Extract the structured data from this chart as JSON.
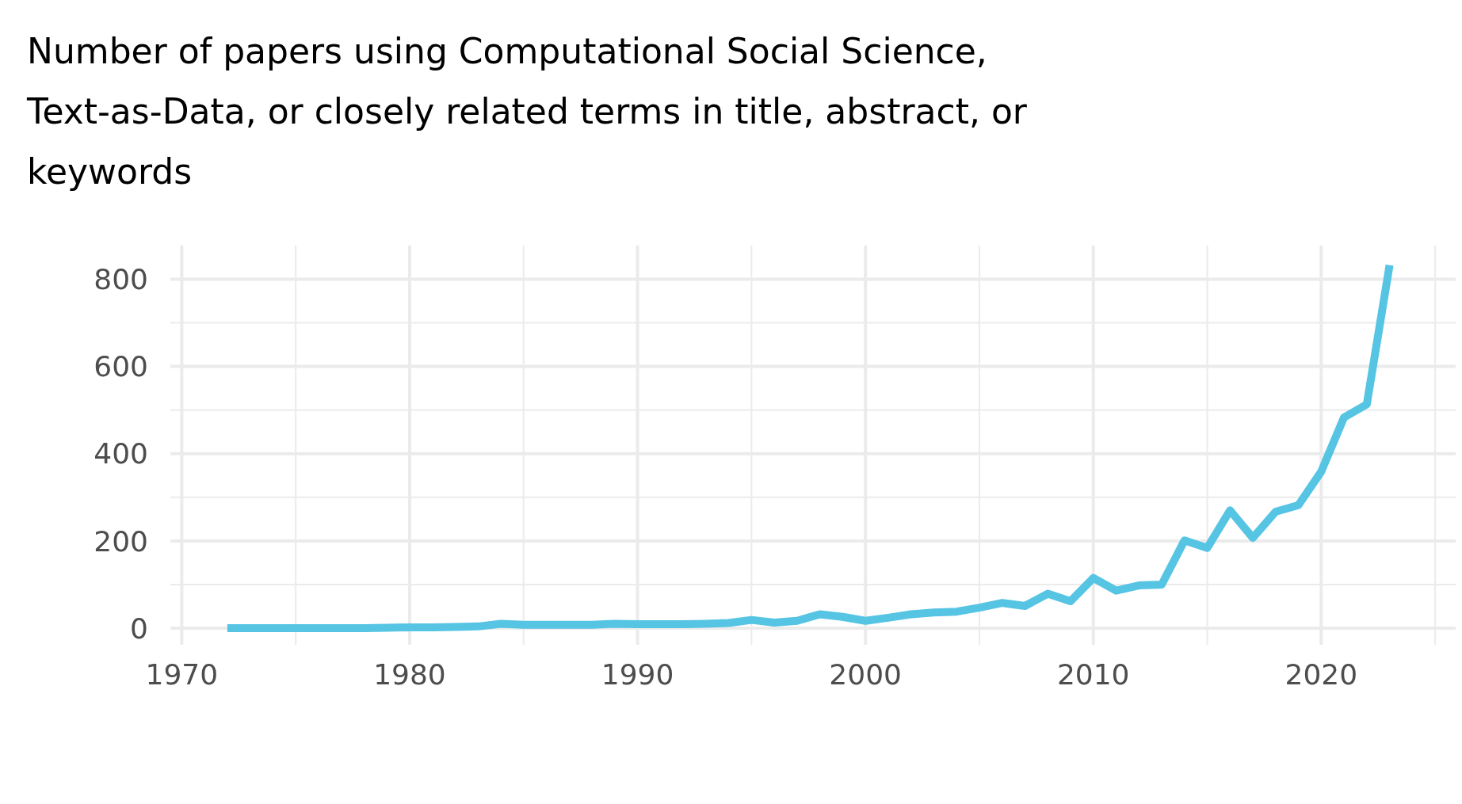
{
  "chart_data": {
    "type": "line",
    "title": "Number of papers using Computational Social Science, Text-as-Data, or closely related terms in title, abstract, or keywords",
    "x": [
      1972,
      1973,
      1974,
      1975,
      1976,
      1977,
      1978,
      1979,
      1980,
      1981,
      1982,
      1983,
      1984,
      1985,
      1986,
      1987,
      1988,
      1989,
      1990,
      1991,
      1992,
      1993,
      1994,
      1995,
      1996,
      1997,
      1998,
      1999,
      2000,
      2001,
      2002,
      2003,
      2004,
      2005,
      2006,
      2007,
      2008,
      2009,
      2010,
      2011,
      2012,
      2013,
      2014,
      2015,
      2016,
      2017,
      2018,
      2019,
      2020,
      2021,
      2022,
      2023
    ],
    "series": [
      {
        "color": "#56c4e3",
        "values": [
          0,
          0,
          0,
          0,
          0,
          0,
          0,
          1,
          2,
          2,
          3,
          4,
          10,
          8,
          8,
          8,
          8,
          10,
          9,
          9,
          9,
          10,
          12,
          19,
          13,
          17,
          32,
          26,
          17,
          24,
          32,
          36,
          38,
          47,
          58,
          51,
          79,
          62,
          115,
          86,
          98,
          100,
          201,
          184,
          270,
          207,
          267,
          282,
          359,
          483,
          513,
          832
        ]
      }
    ],
    "xlim": [
      1969.5,
      2025.9
    ],
    "xticks": [
      1970,
      {
        "value": 1975,
        "label": null
      },
      1980,
      {
        "value": 1985,
        "label": null
      },
      1990,
      {
        "value": 1995,
        "label": null
      },
      2000,
      {
        "value": 2005,
        "label": null
      },
      2010,
      {
        "value": 2015,
        "label": null
      },
      2020,
      {
        "value": 2025,
        "label": null
      }
    ],
    "ylim": [
      -38,
      877
    ],
    "yticks": [
      0,
      {
        "value": 100,
        "label": null
      },
      200,
      {
        "value": 300,
        "label": null
      },
      400,
      {
        "value": 500,
        "label": null
      },
      600,
      {
        "value": 700,
        "label": null
      },
      800
    ],
    "grid": true,
    "line_style": "solid",
    "marker": "none"
  }
}
